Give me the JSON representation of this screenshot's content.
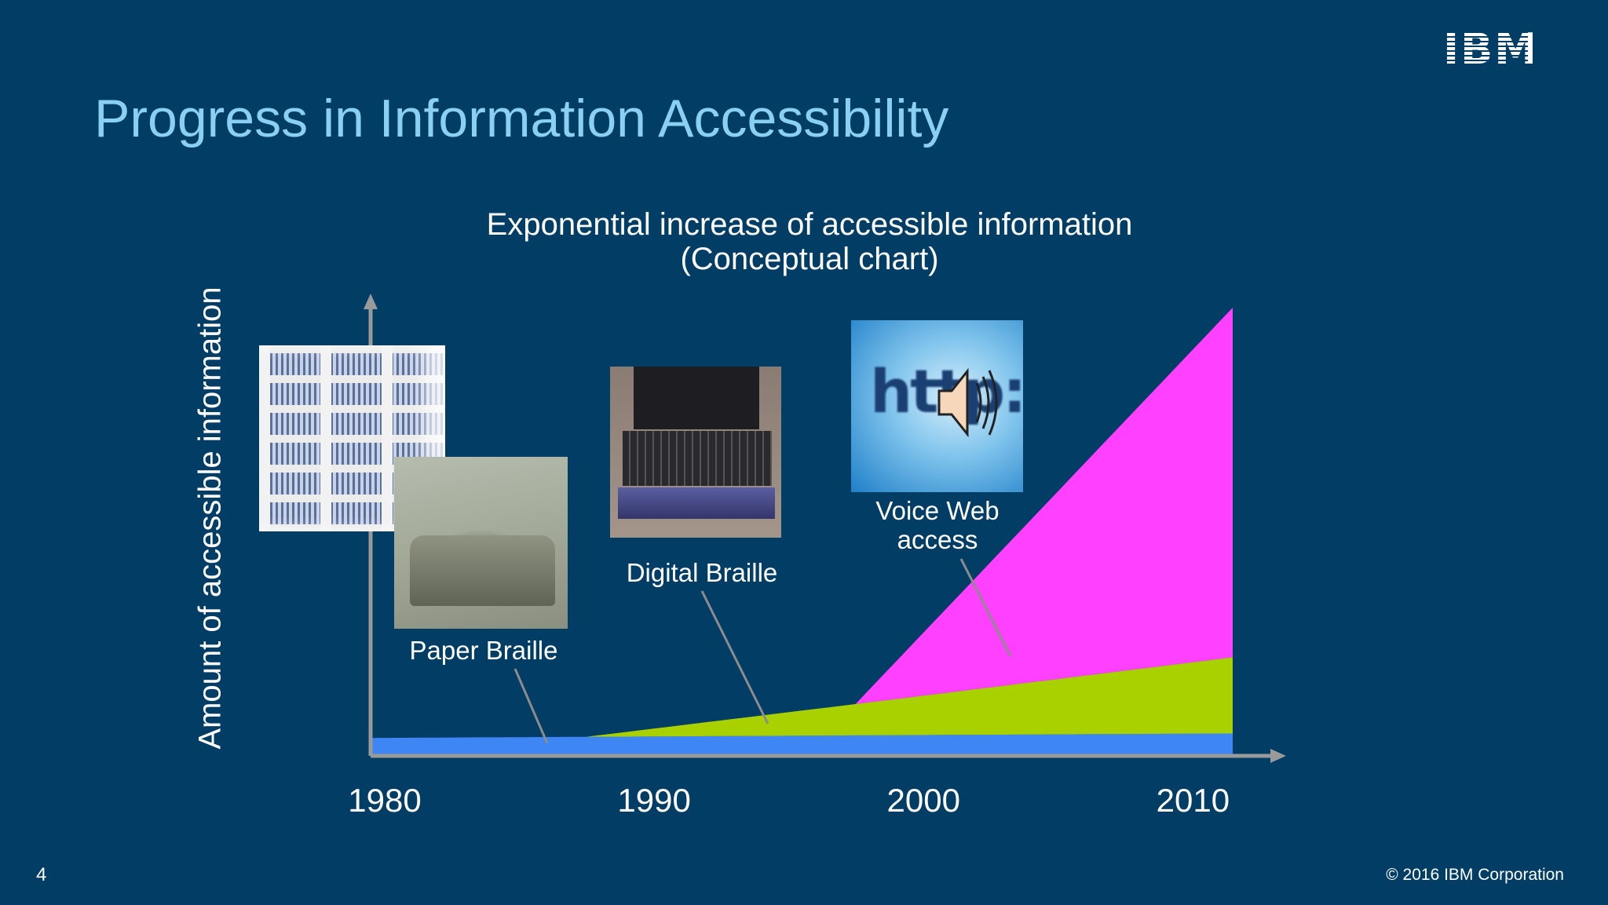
{
  "slide": {
    "title": "Progress in Information Accessibility",
    "logo_text": "IBM",
    "page_number": "4",
    "copyright": "© 2016 IBM Corporation"
  },
  "chart_data": {
    "type": "area",
    "title": "Exponential increase of accessible information",
    "subtitle": "(Conceptual chart)",
    "ylabel": "Amount of accessible information",
    "xlabel": "",
    "x_ticks": [
      "1980",
      "1990",
      "2000",
      "2010"
    ],
    "xlim": [
      1980,
      2012
    ],
    "ylim": [
      0,
      100
    ],
    "stacked": true,
    "series": [
      {
        "name": "Paper Braille",
        "color": "#3f86f5",
        "x": [
          1980,
          2012
        ],
        "values": [
          4,
          5
        ]
      },
      {
        "name": "Digital Braille",
        "color": "#a9d100",
        "x": [
          1988,
          1998,
          2012
        ],
        "values": [
          0,
          7,
          17
        ]
      },
      {
        "name": "Voice Web access",
        "color": "#ff40ff",
        "x": [
          1998,
          2012
        ],
        "values": [
          0,
          78
        ]
      }
    ],
    "annotations": [
      {
        "label": "Paper Braille",
        "series": "Paper Braille",
        "x": 1987
      },
      {
        "label": "Digital Braille",
        "series": "Digital Braille",
        "x": 1995
      },
      {
        "label": "Voice Web access",
        "series": "Voice Web access",
        "x": 2008
      }
    ]
  }
}
